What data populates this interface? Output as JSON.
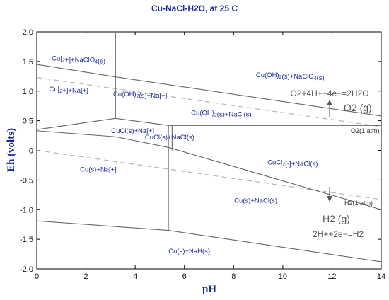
{
  "chart_data": {
    "type": "line",
    "title": "Cu-NaCl-H2O, at 25 C",
    "xlabel": "pH",
    "ylabel": "Eh (volts)",
    "xlim": [
      0,
      14
    ],
    "ylim": [
      -2.0,
      2.0
    ],
    "x_ticks": [
      "0",
      "2",
      "4",
      "6",
      "8",
      "10",
      "12",
      "14"
    ],
    "y_ticks": [
      "2.0",
      "1.5",
      "1.0",
      "0.5",
      "0",
      "-0.5",
      "-1.0",
      "-1.5",
      "-2.0"
    ],
    "boundaries": [
      {
        "x": [
          0,
          3.2,
          14
        ],
        "y": [
          1.45,
          1.24,
          0.58
        ]
      },
      {
        "x": [
          3.2,
          3.2
        ],
        "y": [
          1.98,
          0.54
        ]
      },
      {
        "x": [
          0,
          3.2
        ],
        "y": [
          0.35,
          0.54
        ]
      },
      {
        "x": [
          3.2,
          5.35,
          14
        ],
        "y": [
          0.54,
          0.42,
          0.42
        ]
      },
      {
        "x": [
          0,
          3.2,
          5.35
        ],
        "y": [
          0.33,
          0.23,
          0.05
        ]
      },
      {
        "x": [
          5.35,
          14
        ],
        "y": [
          0.05,
          -1.0
        ]
      },
      {
        "x": [
          5.35,
          5.35
        ],
        "y": [
          0.42,
          -1.35
        ]
      },
      {
        "x": [
          5.5,
          5.5
        ],
        "y": [
          0.42,
          0.0
        ]
      },
      {
        "x": [
          0,
          5.35,
          14
        ],
        "y": [
          -1.19,
          -1.35,
          -1.88
        ]
      }
    ],
    "water_lines": [
      {
        "x": [
          0,
          14
        ],
        "y": [
          1.23,
          0.4
        ]
      },
      {
        "x": [
          0,
          14
        ],
        "y": [
          0.0,
          -0.83
        ]
      }
    ],
    "region_labels": [
      {
        "text": "Cu[2+]+NaClO4(s)",
        "x": 1.7,
        "y": 1.55
      },
      {
        "text": "Cu[2+]+Na[+]",
        "x": 1.3,
        "y": 1.03
      },
      {
        "text": "Cu(OH)2(s)+Na[+]",
        "x": 4.2,
        "y": 0.95
      },
      {
        "text": "Cu(OH)2(s)+NaClO4(s)",
        "x": 10.3,
        "y": 1.27
      },
      {
        "text": "Cu(OH)2(s)+NaCl(s)",
        "x": 7.5,
        "y": 0.63
      },
      {
        "text": "CuCl(s)+Na[+]",
        "x": 3.9,
        "y": 0.33
      },
      {
        "text": "CuCl(s)+NaCl(s)",
        "x": 5.4,
        "y": 0.22
      },
      {
        "text": "Cu(s)+Na[+]",
        "x": 2.5,
        "y": -0.32
      },
      {
        "text": "CuCl2[-]+NaCl(s)",
        "x": 10.4,
        "y": -0.2
      },
      {
        "text": "Cu(s)+NaCl(s)",
        "x": 8.9,
        "y": -0.85
      },
      {
        "text": "Cu(s)+NaH(s)",
        "x": 6.2,
        "y": -1.7
      }
    ],
    "annotations": {
      "o2_reaction": "O2+4H++4e−=2H2O",
      "o2_gas": "O2 (g)",
      "o2_atm": "O2(1 atm)",
      "h2_gas": "H2 (g)",
      "h2_reaction": "2H++2e−=H2",
      "h2_atm": "H2(1 atm)"
    },
    "grid": false,
    "legend": "none"
  }
}
